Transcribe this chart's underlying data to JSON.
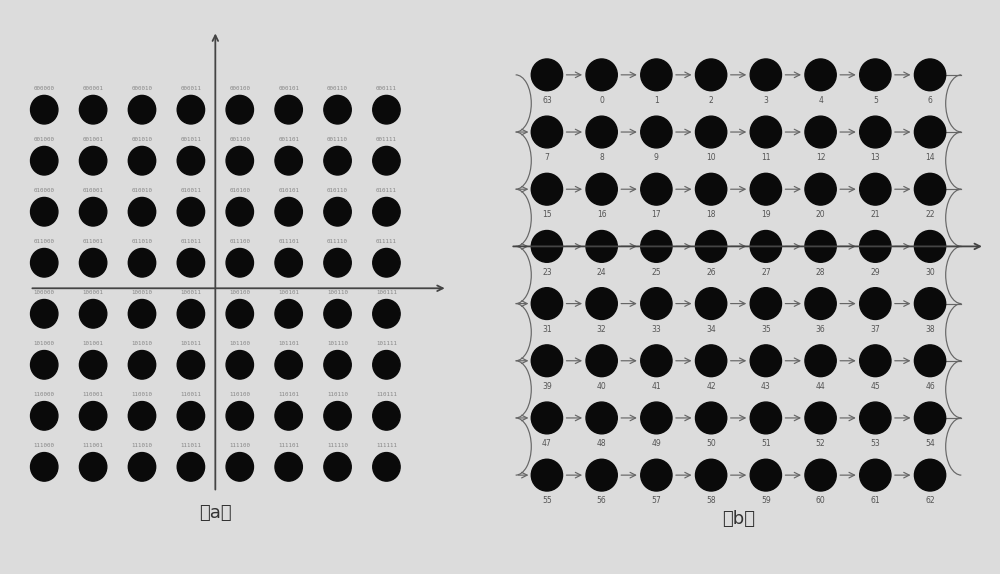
{
  "bg_color": "#dcdcdc",
  "dot_color": "#0a0a0a",
  "axis_color": "#444444",
  "label_color_a": "#888888",
  "label_color_b": "#555555",
  "panel_a": {
    "labels": [
      [
        "000000",
        "000001",
        "000010",
        "000011",
        "000100",
        "000101",
        "000110",
        "000111"
      ],
      [
        "001000",
        "001001",
        "001010",
        "001011",
        "001100",
        "001101",
        "001110",
        "001111"
      ],
      [
        "010000",
        "010001",
        "010010",
        "010011",
        "010100",
        "010101",
        "010110",
        "010111"
      ],
      [
        "011000",
        "011001",
        "011010",
        "011011",
        "011100",
        "011101",
        "011110",
        "011111"
      ],
      [
        "100000",
        "100001",
        "100010",
        "100011",
        "100100",
        "100101",
        "100110",
        "100111"
      ],
      [
        "101000",
        "101001",
        "101010",
        "101011",
        "101100",
        "101101",
        "101110",
        "101111"
      ],
      [
        "110000",
        "110001",
        "110010",
        "110011",
        "110100",
        "110101",
        "110110",
        "110111"
      ],
      [
        "111000",
        "111001",
        "111010",
        "111011",
        "111100",
        "111101",
        "111110",
        "111111"
      ]
    ],
    "caption": "（a）"
  },
  "panel_b": {
    "row_labels": [
      [
        "63",
        "0",
        "1",
        "2",
        "3",
        "4",
        "5",
        "6"
      ],
      [
        "7",
        "8",
        "9",
        "10",
        "11",
        "12",
        "13",
        "14"
      ],
      [
        "15",
        "16",
        "17",
        "18",
        "19",
        "20",
        "21",
        "22"
      ],
      [
        "23",
        "24",
        "25",
        "26",
        "27",
        "28",
        "29",
        "30"
      ],
      [
        "31",
        "32",
        "33",
        "34",
        "35",
        "36",
        "37",
        "38"
      ],
      [
        "39",
        "40",
        "41",
        "42",
        "43",
        "44",
        "45",
        "46"
      ],
      [
        "47",
        "48",
        "49",
        "50",
        "51",
        "52",
        "53",
        "54"
      ],
      [
        "55",
        "56",
        "57",
        "58",
        "59",
        "60",
        "61",
        "62"
      ]
    ],
    "caption": "（b）"
  }
}
